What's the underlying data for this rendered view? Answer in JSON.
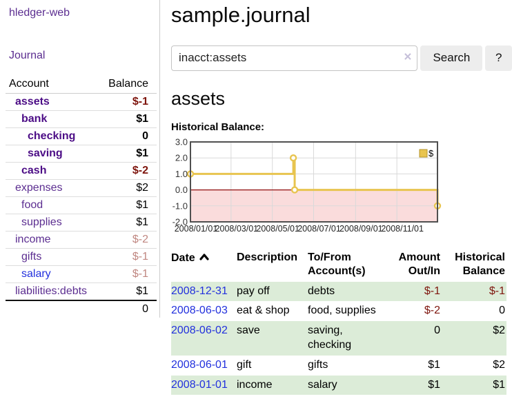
{
  "app": {
    "title": "hledger-web",
    "nav_journal": "Journal"
  },
  "sidebar": {
    "accounts_header": {
      "account": "Account",
      "balance": "Balance"
    },
    "accounts": [
      {
        "name": "assets",
        "indent": 1,
        "bold": true,
        "blue": false,
        "balance": "$-1",
        "balance_color": "neg"
      },
      {
        "name": "bank",
        "indent": 2,
        "bold": true,
        "blue": false,
        "balance": "$1",
        "balance_color": ""
      },
      {
        "name": "checking",
        "indent": 3,
        "bold": true,
        "blue": false,
        "balance": "0",
        "balance_color": ""
      },
      {
        "name": "saving",
        "indent": 3,
        "bold": true,
        "blue": false,
        "balance": "$1",
        "balance_color": ""
      },
      {
        "name": "cash",
        "indent": 2,
        "bold": true,
        "blue": false,
        "balance": "$-2",
        "balance_color": "neg"
      },
      {
        "name": "expenses",
        "indent": 1,
        "bold": false,
        "blue": false,
        "balance": "$2",
        "balance_color": ""
      },
      {
        "name": "food",
        "indent": 2,
        "bold": false,
        "blue": false,
        "balance": "$1",
        "balance_color": ""
      },
      {
        "name": "supplies",
        "indent": 2,
        "bold": false,
        "blue": false,
        "balance": "$1",
        "balance_color": ""
      },
      {
        "name": "income",
        "indent": 1,
        "bold": false,
        "blue": false,
        "balance": "$-2",
        "balance_color": "fneg"
      },
      {
        "name": "gifts",
        "indent": 2,
        "bold": false,
        "blue": false,
        "balance": "$-1",
        "balance_color": "fneg"
      },
      {
        "name": "salary",
        "indent": 2,
        "bold": false,
        "blue": true,
        "balance": "$-1",
        "balance_color": "fneg"
      },
      {
        "name": "liabilities:debts",
        "indent": 1,
        "bold": false,
        "blue": false,
        "balance": "$1",
        "balance_color": ""
      }
    ],
    "total": "0"
  },
  "main": {
    "title": "sample.journal",
    "search": {
      "value": "inacct:assets",
      "clear_icon": "×",
      "button": "Search",
      "help_button": "?"
    },
    "account_heading": "assets",
    "chart_heading": "Historical Balance:"
  },
  "chart_data": {
    "type": "line",
    "step": true,
    "title": "Historical Balance",
    "series": [
      {
        "name": "$",
        "points": [
          [
            "2008-01-01",
            1
          ],
          [
            "2008-06-01",
            2
          ],
          [
            "2008-06-03",
            0
          ],
          [
            "2008-12-31",
            -1
          ]
        ]
      }
    ],
    "x_range": [
      "2008-01-01",
      "2008-12-31"
    ],
    "x_ticks": [
      "2008/01/01",
      "2008/03/01",
      "2008/05/01",
      "2008/07/01",
      "2008/09/01",
      "2008/11/01"
    ],
    "y_ticks": [
      3.0,
      2.0,
      1.0,
      0.0,
      -1.0,
      -2.0
    ],
    "ylim": [
      -2,
      3
    ],
    "legend": [
      "$"
    ],
    "legend_position": "top-right",
    "grid": true,
    "negative_region_shaded": true
  },
  "register": {
    "columns": [
      {
        "label": "Date",
        "sorted": "asc"
      },
      {
        "label": "Description"
      },
      {
        "label": "To/From\nAccount(s)"
      },
      {
        "label": "Amount\nOut/In",
        "align": "right"
      },
      {
        "label": "Historical\nBalance",
        "align": "right"
      }
    ],
    "rows": [
      {
        "date": "2008-12-31",
        "description": "pay off",
        "accounts": "debts",
        "amount": "$-1",
        "amount_neg": true,
        "balance": "$-1",
        "balance_neg": true
      },
      {
        "date": "2008-06-03",
        "description": "eat & shop",
        "accounts": "food, supplies",
        "amount": "$-2",
        "amount_neg": true,
        "balance": "0",
        "balance_neg": false
      },
      {
        "date": "2008-06-02",
        "description": "save",
        "accounts": "saving, checking",
        "amount": "0",
        "amount_neg": false,
        "balance": "$2",
        "balance_neg": false
      },
      {
        "date": "2008-06-01",
        "description": "gift",
        "accounts": "gifts",
        "amount": "$1",
        "amount_neg": false,
        "balance": "$2",
        "balance_neg": false
      },
      {
        "date": "2008-01-01",
        "description": "income",
        "accounts": "salary",
        "amount": "$1",
        "amount_neg": false,
        "balance": "$1",
        "balance_neg": false
      }
    ]
  }
}
